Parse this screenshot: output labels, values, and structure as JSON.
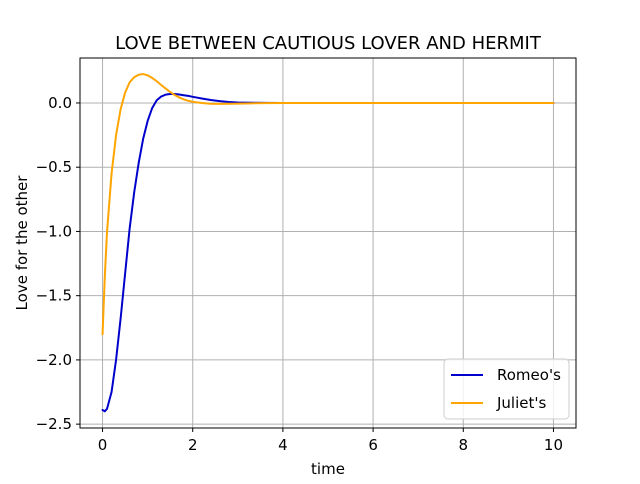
{
  "chart_data": {
    "type": "line",
    "title": "LOVE BETWEEN CAUTIOUS LOVER AND HERMIT",
    "xlabel": "time",
    "ylabel": "Love for the other",
    "xlim": [
      -0.5,
      10.5
    ],
    "ylim": [
      -2.53,
      0.35
    ],
    "xticks": [
      0,
      2,
      4,
      6,
      8,
      10
    ],
    "xtick_labels": [
      "0",
      "2",
      "4",
      "6",
      "8",
      "10"
    ],
    "yticks": [
      -2.5,
      -2.0,
      -1.5,
      -1.0,
      -0.5,
      0.0
    ],
    "ytick_labels": [
      "−2.5",
      "−2.0",
      "−1.5",
      "−1.0",
      "−0.5",
      "0.0"
    ],
    "grid": true,
    "legend_position": "lower-right",
    "series": [
      {
        "name": "Romeo's",
        "color": "#0000cc",
        "x": [
          0,
          0.05,
          0.1,
          0.2,
          0.3,
          0.4,
          0.5,
          0.6,
          0.7,
          0.8,
          0.9,
          1.0,
          1.1,
          1.2,
          1.3,
          1.4,
          1.5,
          1.6,
          1.7,
          1.8,
          1.9,
          2.0,
          2.2,
          2.4,
          2.6,
          2.8,
          3.0,
          3.3,
          3.6,
          4.0,
          5.0,
          6.0,
          7.0,
          8.0,
          9.0,
          10.0
        ],
        "values": [
          -2.39,
          -2.4,
          -2.38,
          -2.25,
          -2.0,
          -1.68,
          -1.33,
          -0.98,
          -0.7,
          -0.47,
          -0.28,
          -0.14,
          -0.04,
          0.02,
          0.05,
          0.065,
          0.07,
          0.07,
          0.066,
          0.06,
          0.055,
          0.048,
          0.035,
          0.023,
          0.014,
          0.008,
          0.004,
          0.002,
          0.001,
          0.0,
          0.0,
          0.0,
          0.0,
          0.0,
          0.0,
          0.0
        ]
      },
      {
        "name": "Juliet's",
        "color": "#ffa500",
        "x": [
          0,
          0.05,
          0.1,
          0.2,
          0.3,
          0.4,
          0.5,
          0.6,
          0.7,
          0.8,
          0.9,
          1.0,
          1.1,
          1.2,
          1.3,
          1.4,
          1.5,
          1.6,
          1.7,
          1.8,
          1.9,
          2.0,
          2.2,
          2.4,
          2.6,
          2.8,
          3.0,
          3.3,
          3.6,
          4.0,
          5.0,
          6.0,
          7.0,
          8.0,
          9.0,
          10.0
        ],
        "values": [
          -1.8,
          -1.35,
          -1.0,
          -0.55,
          -0.25,
          -0.05,
          0.08,
          0.16,
          0.2,
          0.22,
          0.225,
          0.215,
          0.195,
          0.17,
          0.14,
          0.112,
          0.085,
          0.062,
          0.043,
          0.028,
          0.017,
          0.009,
          0.0,
          -0.006,
          -0.007,
          -0.006,
          -0.005,
          -0.003,
          -0.001,
          0.0,
          0.0,
          0.0,
          0.0,
          0.0,
          0.0,
          0.0
        ]
      }
    ]
  }
}
